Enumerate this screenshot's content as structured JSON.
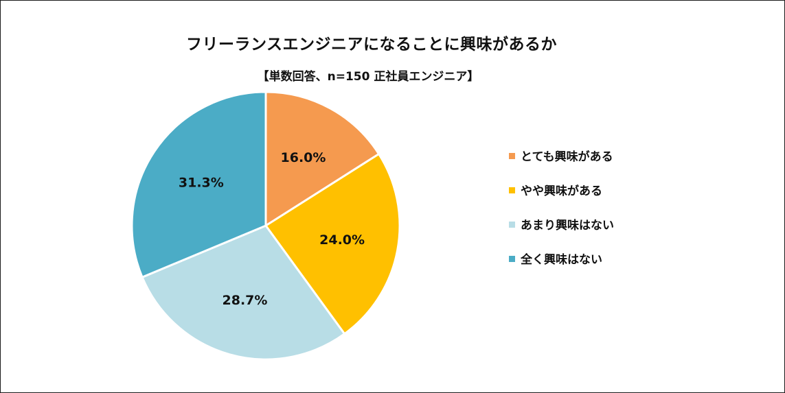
{
  "chart_data": {
    "type": "pie",
    "title": "フリーランスエンジニアになることに興味があるか",
    "subtitle": "【単数回答、n=150 正社員エンジニア】",
    "legend_position": "right",
    "slices": [
      {
        "label": "とても興味がある",
        "value": 16.0,
        "display": "16.0%",
        "color": "#F59A4F"
      },
      {
        "label": "やや興味がある",
        "value": 24.0,
        "display": "24.0%",
        "color": "#FFC000"
      },
      {
        "label": "あまり興味はない",
        "value": 28.7,
        "display": "28.7%",
        "color": "#B8DDE6"
      },
      {
        "label": "全く興味はない",
        "value": 31.3,
        "display": "31.3%",
        "color": "#4BACC6"
      }
    ]
  }
}
